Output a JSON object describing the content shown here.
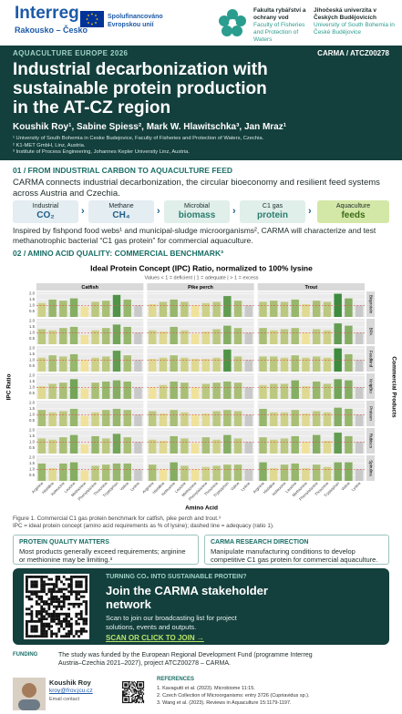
{
  "header": {
    "interreg": "Interreg",
    "interreg_sub": "Rakousko – Česko",
    "eu": "Spolufinancováno Evropskou unií",
    "faculty_cz": "Fakulta rybářství a ochrany vod",
    "faculty_en": "Faculty of Fisheries and Protection of Waters",
    "uni_cz": "Jihočeská univerzita v Českých Budějovicích",
    "uni_en": "University of South Bohemia in České Budějovice"
  },
  "banner": {
    "event": "AQUACULTURE EUROPE 2026",
    "project": "CARMA / ATCZ00278",
    "title": "Industrial decarbonization with sustainable protein production in the AT-CZ region",
    "authors": "Koushik Roy¹, Sabine Spiess², Mark W. Hlawitschka³, Jan Mraz¹",
    "affiliations": [
      "¹ University of South Bohemia in Ceske Budejovice, Faculty of Fisheries and Protection of Waters, Czechia.",
      "² K1-MET GmbH, Linz, Austria.",
      "³ Institute of Process Engineering, Johannes Kepler University Linz, Austria."
    ]
  },
  "section1": {
    "heading": "01 / FROM INDUSTRIAL CARBON TO AQUACULTURE FEED",
    "intro": "CARMA connects industrial decarbonization, the circular bioeconomy and resilient feed systems across Austria and Czechia.",
    "flow": [
      {
        "top": "Industrial",
        "bottom": "CO₂"
      },
      {
        "top": "Methane",
        "bottom": "CH₄"
      },
      {
        "top": "Microbial",
        "bottom": "biomass"
      },
      {
        "top": "C1 gas",
        "bottom": "protein"
      },
      {
        "top": "Aquaculture",
        "bottom": "feeds"
      }
    ],
    "outro": "Inspired by fishpond food webs¹ and municipal-sludge microorganisms², CARMA will characterize and test methanotrophic bacterial “C1 gas protein” for commercial aquaculture."
  },
  "section2": {
    "heading": "02 / AMINO ACID QUALITY: COMMERCIAL BENCHMARK³",
    "caption": [
      "Figure 1. Commercial C1 gas protein benchmark for catfish, pike perch and trout.³",
      "IPC = ideal protein concept (amino acid requirements as % of lysine); dashed line = adequacy (ratio 1)."
    ]
  },
  "chart_data": {
    "type": "faceted-bar",
    "title": "Ideal Protein Concept (IPC) Ratio, normalized to 100% lysine",
    "subtitle": "Values < 1 = deficient | 1 = adequate | > 1 = excess",
    "y_label": "IPC Ratio",
    "x_label": "Amino Acid",
    "facet_label": "Commercial Products",
    "columns": [
      "Catfish",
      "Pike perch",
      "Trout"
    ],
    "categories": [
      "Arginine",
      "Histidine",
      "Isoleucine",
      "Leucine",
      "Methionine",
      "Phenylalanine",
      "Threonine",
      "Tryptophan",
      "Valine",
      "Lysine"
    ],
    "ylim": [
      0,
      2.2
    ],
    "yticks": [
      {
        "value": 0.5,
        "label": "0.5"
      },
      {
        "value": 1,
        "label": "1.0"
      },
      {
        "value": 1.5,
        "label": "1.5"
      },
      {
        "value": 2,
        "label": "2.0"
      }
    ],
    "threshold": 1,
    "threshold_color": "#d9534f",
    "grid": true,
    "color_low": "#f1e29b",
    "color_high": "#3d8b3d",
    "reference_index": 9,
    "reference_color": "#c9c9c9",
    "series": [
      {
        "name": "Bioprotein",
        "values": [
          [
            1.2,
            1.5,
            1.4,
            1.6,
            0.9,
            1.3,
            1.4,
            1.9,
            1.5,
            1.0
          ],
          [
            1.1,
            1.3,
            1.5,
            1.3,
            1.0,
            1.2,
            1.3,
            1.8,
            1.4,
            1.0
          ],
          [
            1.3,
            1.4,
            1.3,
            1.5,
            1.1,
            1.4,
            1.3,
            2.0,
            1.6,
            1.0
          ]
        ]
      },
      {
        "name": "BPA",
        "values": [
          [
            1.3,
            1.2,
            1.4,
            1.5,
            0.8,
            1.2,
            1.4,
            1.7,
            1.5,
            1.0
          ],
          [
            1.2,
            1.1,
            1.5,
            1.2,
            0.9,
            1.1,
            1.3,
            1.6,
            1.4,
            1.0
          ],
          [
            1.4,
            1.2,
            1.3,
            1.4,
            1.0,
            1.3,
            1.2,
            1.8,
            1.6,
            1.0
          ]
        ]
      },
      {
        "name": "Feedkind",
        "values": [
          [
            1.2,
            1.4,
            1.3,
            1.5,
            1.0,
            1.2,
            1.3,
            1.8,
            1.4,
            1.0
          ],
          [
            1.1,
            1.2,
            1.4,
            1.2,
            1.1,
            1.1,
            1.2,
            1.9,
            1.3,
            1.0
          ],
          [
            1.3,
            1.3,
            1.2,
            1.4,
            1.2,
            1.3,
            1.2,
            2.0,
            1.5,
            1.0
          ]
        ]
      },
      {
        "name": "KnipBio",
        "values": [
          [
            1.1,
            1.3,
            1.4,
            1.7,
            0.9,
            1.4,
            1.5,
            1.6,
            1.5,
            1.0
          ],
          [
            1.0,
            1.2,
            1.5,
            1.4,
            1.0,
            1.3,
            1.4,
            1.5,
            1.4,
            1.0
          ],
          [
            1.2,
            1.3,
            1.3,
            1.6,
            1.1,
            1.5,
            1.3,
            1.7,
            1.6,
            1.0
          ]
        ]
      },
      {
        "name": "Pruteen",
        "values": [
          [
            1.4,
            1.2,
            1.3,
            1.5,
            0.9,
            1.2,
            1.4,
            1.5,
            1.4,
            1.0
          ],
          [
            1.3,
            1.1,
            1.4,
            1.2,
            1.0,
            1.1,
            1.3,
            1.4,
            1.3,
            1.0
          ],
          [
            1.5,
            1.2,
            1.2,
            1.4,
            1.1,
            1.3,
            1.2,
            1.6,
            1.5,
            1.0
          ]
        ]
      },
      {
        "name": "Rubisco",
        "values": [
          [
            1.3,
            1.2,
            1.4,
            1.6,
            0.8,
            1.5,
            1.3,
            1.7,
            1.4,
            1.0
          ],
          [
            1.2,
            1.1,
            1.5,
            1.3,
            0.9,
            1.4,
            1.2,
            1.6,
            1.3,
            1.0
          ],
          [
            1.4,
            1.2,
            1.3,
            1.5,
            1.0,
            1.6,
            1.1,
            1.8,
            1.5,
            1.0
          ]
        ]
      },
      {
        "name": "Spirulina",
        "values": [
          [
            1.5,
            1.1,
            1.5,
            1.6,
            0.9,
            1.3,
            1.4,
            1.5,
            1.5,
            1.0
          ],
          [
            1.4,
            1.0,
            1.6,
            1.3,
            1.0,
            1.2,
            1.3,
            1.4,
            1.4,
            1.0
          ],
          [
            1.6,
            1.1,
            1.4,
            1.5,
            1.1,
            1.4,
            1.2,
            1.6,
            1.6,
            1.0
          ]
        ]
      }
    ]
  },
  "boxes": [
    {
      "title": "PROTEIN QUALITY MATTERS",
      "text": "Most products generally exceed requirements; arginine or methionine may be limiting.³"
    },
    {
      "title": "CARMA RESEARCH DIRECTION",
      "text": "Manipulate manufacturing conditions to develop competitive C1 gas protein for commercial aquaculture."
    }
  ],
  "cta": {
    "kicker": "TURNING CO₂ INTO SUSTAINABLE PROTEIN?",
    "title": "Join the CARMA stakeholder network",
    "text": "Scan to join our broadcasting list for project solutions, events and outputs.",
    "link": "SCAN OR CLICK TO JOIN →"
  },
  "funding": {
    "label": "FUNDING",
    "text": "The study was funded by the European Regional Development Fund (programme Interreg Austria–Czechia 2021–2027), project ATCZ00278 – CARMA."
  },
  "contact": {
    "name": "Koushik Roy",
    "email": "kroy@frov.jcu.cz",
    "note": "Email contact"
  },
  "references": {
    "label": "REFERENCES",
    "items": [
      "1. Kavagutti et al. (2023). Microbiome 11:15.",
      "2. Czech Collection of Microorganisms: entry 3726 (Cupriavidus sp.).",
      "3. Wang et al. (2023). Reviews in Aquaculture 15:1179-1197."
    ]
  }
}
